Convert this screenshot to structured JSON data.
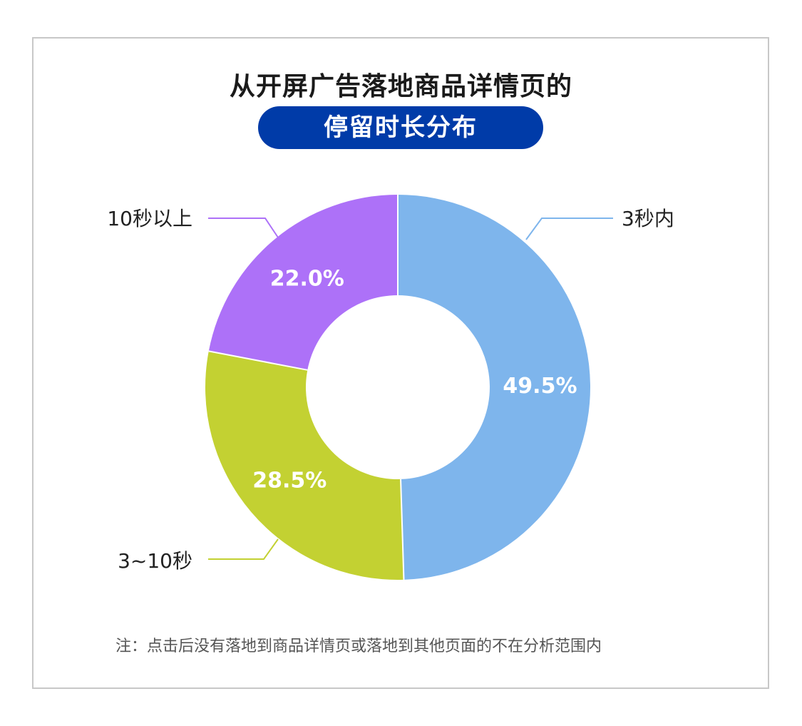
{
  "title": "从开屏广告落地商品详情页的",
  "subtitle": "停留时长分布",
  "note": "注：点击后没有落地到商品详情页或落地到其他页面的不在分析范围内",
  "colors": {
    "title_pill": "#003ba8",
    "series": [
      "#7eb5ec",
      "#c3d132",
      "#ad71f8"
    ],
    "label_text": "#222222",
    "value_text": "#ffffff",
    "frame": "#c8c8c8"
  },
  "chart_data": {
    "type": "pie",
    "donut": true,
    "start": "top",
    "direction": "clockwise",
    "categories": [
      "3秒内",
      "3~10秒",
      "10秒以上"
    ],
    "values": [
      49.5,
      28.5,
      22.0
    ],
    "value_labels": [
      "49.5%",
      "28.5%",
      "22.0%"
    ],
    "unit": "%"
  }
}
